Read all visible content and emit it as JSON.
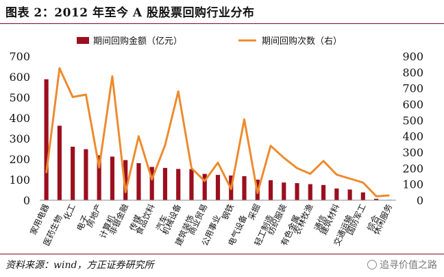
{
  "title": "图表 2：2012 年至今 A 股股票回购行业分布",
  "source": "资料来源：wind，方正证券研究所",
  "watermark": "追寻价值之路",
  "colors": {
    "bar": "#9b0f1f",
    "line": "#ee8a2e",
    "rule": "#7a0a1c"
  },
  "chart_data": {
    "type": "bar+line",
    "title": "2012 年至今 A 股股票回购行业分布",
    "categories": [
      "家用电器",
      "医药生物",
      "化工",
      "电子",
      "房地产",
      "计算机",
      "非银金融",
      "传媒",
      "食品饮料",
      "汽车",
      "机械设备",
      "建筑装饰",
      "商业贸易",
      "公用事业",
      "钢铁",
      "电气设备",
      "采掘",
      "轻工制造",
      "纺织服装",
      "有色金属",
      "农林牧渔",
      "通信",
      "建筑材料",
      "交通运输",
      "国防军工",
      "综合",
      "休闲服务"
    ],
    "series": [
      {
        "name": "期间回购金额（亿元）",
        "type": "bar",
        "axis": "left",
        "values": [
          588,
          362,
          260,
          248,
          218,
          212,
          195,
          180,
          162,
          157,
          152,
          151,
          128,
          123,
          120,
          117,
          100,
          97,
          86,
          83,
          78,
          74,
          57,
          52,
          38,
          7,
          2
        ]
      },
      {
        "name": "期间回购次数（右）",
        "type": "line",
        "axis": "right",
        "values": [
          170,
          825,
          645,
          660,
          205,
          775,
          50,
          400,
          130,
          345,
          680,
          200,
          120,
          235,
          70,
          505,
          45,
          340,
          265,
          200,
          165,
          245,
          160,
          135,
          110,
          25,
          30
        ]
      }
    ],
    "ylim_left": [
      0,
      700
    ],
    "ylim_right": [
      0,
      900
    ],
    "yticks_left": [
      "0",
      "100",
      "200",
      "300",
      "400",
      "500",
      "600",
      "700"
    ],
    "yticks_right": [
      "0",
      "100",
      "200",
      "300",
      "400",
      "500",
      "600",
      "700",
      "800",
      "900"
    ],
    "legend": {
      "bar_label": "期间回购金额（亿元）",
      "line_label": "期间回购次数（右）",
      "position": "top"
    },
    "grid": false
  }
}
